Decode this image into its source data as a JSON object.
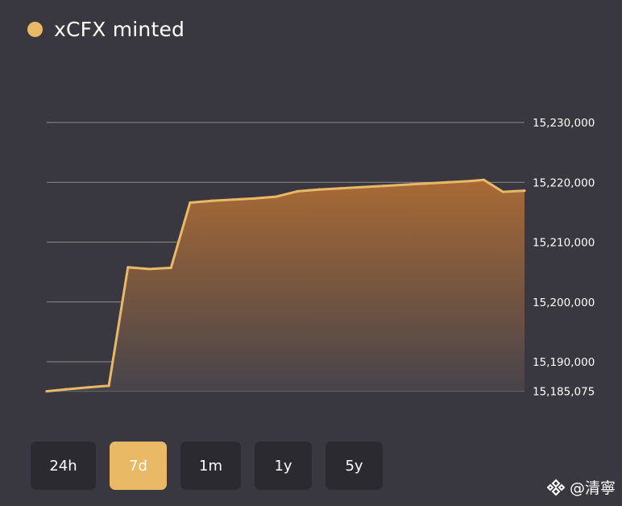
{
  "legend": {
    "label": "xCFX minted",
    "color": "#e9b965"
  },
  "colors": {
    "line": "#e9b965",
    "area_top": "#a96a35",
    "area_bottom": "#46434b",
    "grid": "#8c8a86",
    "button_bg": "#2b2a31",
    "button_active_bg": "#e9b965",
    "background": "#393840"
  },
  "range_buttons": [
    {
      "label": "24h",
      "active": false
    },
    {
      "label": "7d",
      "active": true
    },
    {
      "label": "1m",
      "active": false
    },
    {
      "label": "1y",
      "active": false
    },
    {
      "label": "5y",
      "active": false
    }
  ],
  "watermark": {
    "text": "@清寧",
    "icon": "binance-diamond-icon"
  },
  "chart_data": {
    "type": "area",
    "title": "",
    "xlabel": "",
    "ylabel": "",
    "legend": [
      "xCFX minted"
    ],
    "legend_position": "top-left",
    "grid": true,
    "y_axis_position": "right",
    "ylim": [
      15185075,
      15230000
    ],
    "yticks": [
      15230000,
      15220000,
      15210000,
      15200000,
      15190000,
      15185075
    ],
    "ytick_labels": [
      "15,230,000",
      "15,220,000",
      "15,210,000",
      "15,200,000",
      "15,190,000",
      "15,185,075"
    ],
    "series": [
      {
        "name": "xCFX minted",
        "values": [
          15185075,
          15185400,
          15185700,
          15186000,
          15205800,
          15205500,
          15205700,
          15216600,
          15216900,
          15217100,
          15217300,
          15217600,
          15218500,
          15218800,
          15219000,
          15219200,
          15219400,
          15219600,
          15219800,
          15220000,
          15220200,
          15220400,
          15218400,
          15218600
        ]
      }
    ]
  }
}
